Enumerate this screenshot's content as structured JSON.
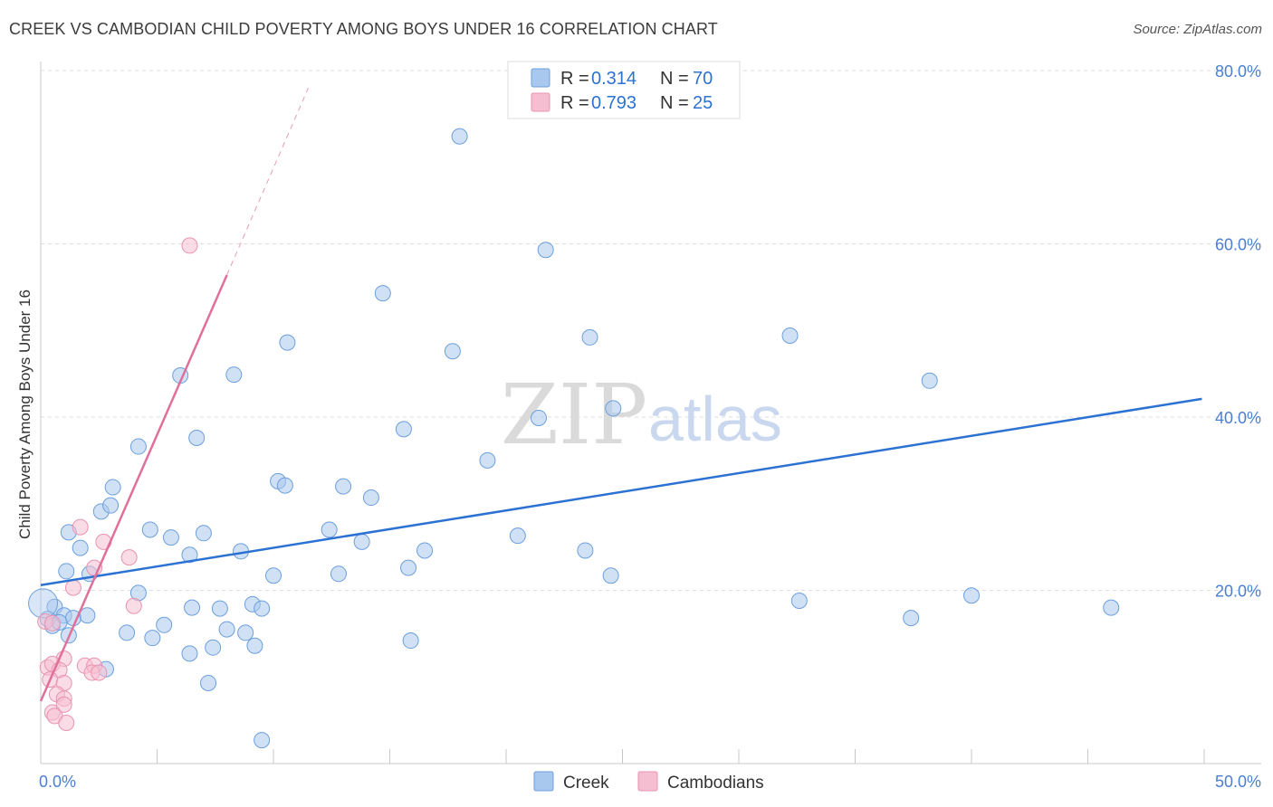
{
  "title": "CREEK VS CAMBODIAN CHILD POVERTY AMONG BOYS UNDER 16 CORRELATION CHART",
  "source": "Source: ZipAtlas.com",
  "watermark": {
    "zip": "ZIP",
    "atlas": "atlas"
  },
  "colors": {
    "blue_fill": "#a9c8ee",
    "blue_stroke": "#6c9fdc",
    "blue_line": "#2c72d2",
    "pink_fill": "#f6bfd1",
    "pink_stroke": "#e993b0",
    "pink_line": "#e0709a",
    "grid": "#dddddd",
    "tick_text": "#4b7fd0"
  },
  "legend": {
    "rows": [
      {
        "r_label": "R = ",
        "r_value": "0.314",
        "n_label": "N = ",
        "n_value": "70"
      },
      {
        "r_label": "R = ",
        "r_value": "0.793",
        "n_label": "N = ",
        "n_value": "25"
      }
    ]
  },
  "bottom_legend": [
    "Creek",
    "Cambodians"
  ],
  "chart_data": {
    "type": "scatter",
    "title": "CREEK VS CAMBODIAN CHILD POVERTY AMONG BOYS UNDER 16 CORRELATION CHART",
    "xlabel": "",
    "ylabel": "Child Poverty Among Boys Under 16",
    "xlim": [
      0,
      50
    ],
    "ylim": [
      0,
      80
    ],
    "x_tick_labels": [
      {
        "value": 0,
        "label": "0.0%"
      },
      {
        "value": 50,
        "label": "50.0%"
      }
    ],
    "y_tick_labels": [
      {
        "value": 20,
        "label": "20.0%"
      },
      {
        "value": 40,
        "label": "40.0%"
      },
      {
        "value": 60,
        "label": "60.0%"
      },
      {
        "value": 80,
        "label": "80.0%"
      }
    ],
    "series": [
      {
        "name": "Creek",
        "R": 0.314,
        "N": 70,
        "trend": {
          "x0": 0,
          "y0": 20.6,
          "x1": 49.9,
          "y1": 42.1
        },
        "points": [
          [
            18.0,
            72.4
          ],
          [
            21.7,
            59.3
          ],
          [
            14.7,
            54.3
          ],
          [
            10.6,
            48.6
          ],
          [
            17.7,
            47.6
          ],
          [
            23.6,
            49.2
          ],
          [
            32.2,
            49.4
          ],
          [
            38.2,
            44.2
          ],
          [
            6.0,
            44.8
          ],
          [
            8.3,
            44.9
          ],
          [
            15.6,
            38.6
          ],
          [
            21.4,
            39.9
          ],
          [
            24.6,
            41.0
          ],
          [
            19.2,
            35.0
          ],
          [
            4.2,
            36.6
          ],
          [
            6.7,
            37.6
          ],
          [
            1.2,
            26.7
          ],
          [
            2.6,
            29.1
          ],
          [
            3.1,
            31.9
          ],
          [
            10.2,
            32.6
          ],
          [
            10.5,
            32.1
          ],
          [
            13.0,
            32.0
          ],
          [
            14.2,
            30.7
          ],
          [
            3.0,
            29.8
          ],
          [
            4.7,
            27.0
          ],
          [
            5.6,
            26.1
          ],
          [
            7.0,
            26.6
          ],
          [
            12.4,
            27.0
          ],
          [
            13.8,
            25.6
          ],
          [
            20.5,
            26.3
          ],
          [
            23.4,
            24.6
          ],
          [
            1.7,
            24.9
          ],
          [
            1.1,
            22.2
          ],
          [
            2.1,
            21.9
          ],
          [
            6.4,
            24.1
          ],
          [
            8.6,
            24.5
          ],
          [
            10.0,
            21.7
          ],
          [
            12.8,
            21.9
          ],
          [
            15.8,
            22.6
          ],
          [
            16.5,
            24.6
          ],
          [
            24.5,
            21.7
          ],
          [
            4.2,
            19.7
          ],
          [
            6.5,
            18.0
          ],
          [
            7.7,
            17.9
          ],
          [
            9.1,
            18.4
          ],
          [
            9.5,
            17.9
          ],
          [
            0.6,
            18.1
          ],
          [
            1.0,
            17.1
          ],
          [
            1.4,
            16.8
          ],
          [
            0.3,
            16.7
          ],
          [
            0.5,
            15.9
          ],
          [
            0.8,
            16.3
          ],
          [
            1.2,
            14.8
          ],
          [
            3.7,
            15.1
          ],
          [
            4.8,
            14.5
          ],
          [
            8.0,
            15.5
          ],
          [
            8.8,
            15.1
          ],
          [
            9.2,
            13.6
          ],
          [
            2.0,
            17.1
          ],
          [
            5.3,
            16.0
          ],
          [
            6.4,
            12.7
          ],
          [
            7.4,
            13.4
          ],
          [
            15.9,
            14.2
          ],
          [
            40.0,
            19.4
          ],
          [
            32.6,
            18.8
          ],
          [
            46.0,
            18.0
          ],
          [
            37.4,
            16.8
          ],
          [
            7.2,
            9.3
          ],
          [
            2.8,
            10.9
          ],
          [
            9.5,
            2.7
          ]
        ]
      },
      {
        "name": "Cambodians",
        "R": 0.793,
        "N": 25,
        "trend": {
          "x0": 0,
          "y0": 7.2,
          "x1": 8.0,
          "y1": 56.4
        },
        "trend_extension": {
          "x0": 8.0,
          "y0": 56.4,
          "x1": 11.5,
          "y1": 78.0
        },
        "points": [
          [
            6.4,
            59.8
          ],
          [
            1.7,
            27.3
          ],
          [
            2.7,
            25.6
          ],
          [
            3.8,
            23.8
          ],
          [
            2.3,
            22.6
          ],
          [
            1.4,
            20.3
          ],
          [
            4.0,
            18.2
          ],
          [
            0.2,
            16.4
          ],
          [
            0.5,
            16.2
          ],
          [
            1.0,
            12.1
          ],
          [
            0.3,
            11.1
          ],
          [
            0.5,
            11.5
          ],
          [
            0.8,
            10.8
          ],
          [
            1.9,
            11.3
          ],
          [
            2.3,
            11.3
          ],
          [
            2.2,
            10.5
          ],
          [
            2.5,
            10.5
          ],
          [
            0.4,
            9.7
          ],
          [
            1.0,
            9.3
          ],
          [
            0.7,
            8.0
          ],
          [
            1.0,
            7.5
          ],
          [
            0.5,
            5.9
          ],
          [
            1.0,
            6.8
          ],
          [
            0.6,
            5.5
          ],
          [
            1.1,
            4.7
          ]
        ]
      }
    ]
  }
}
